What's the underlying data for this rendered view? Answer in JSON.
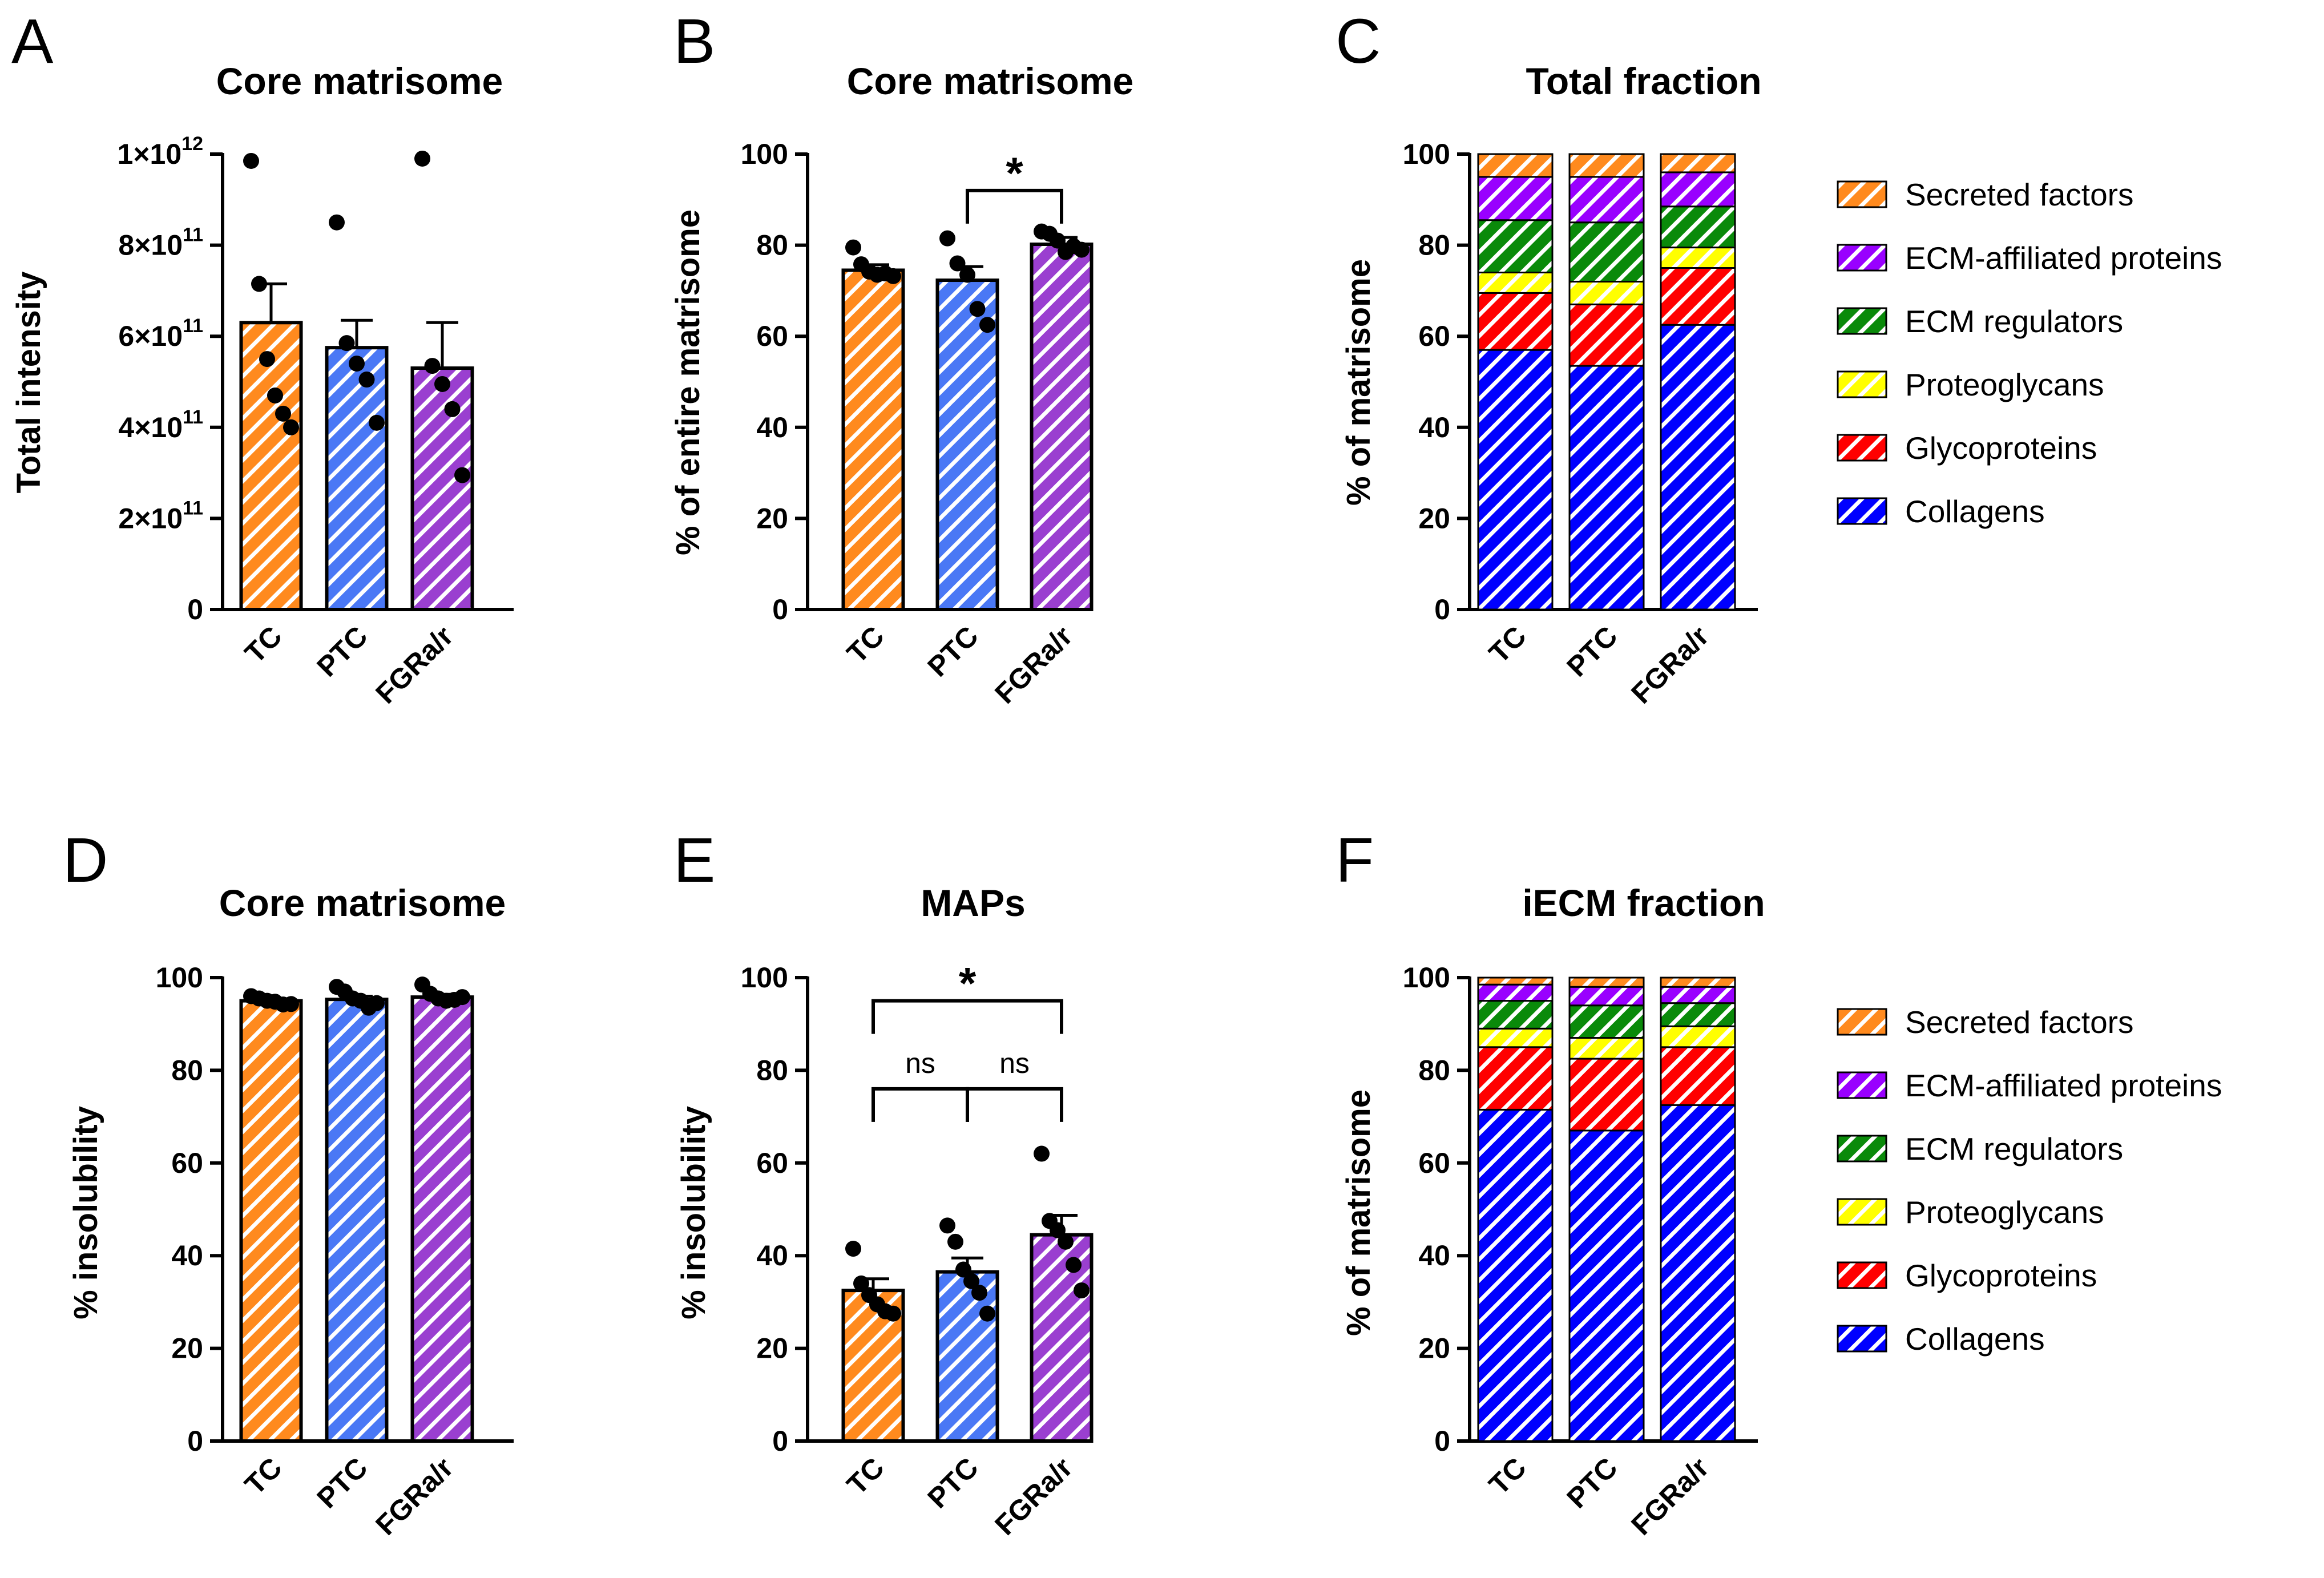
{
  "colors": {
    "TC": "#FF8A1E",
    "PTC": "#4A78F5",
    "FGRa/r": "#9A3FD0",
    "Secreted factors": "#FF8A1E",
    "ECM-affiliated proteins": "#9900FF",
    "ECM regulators": "#0A8A0A",
    "Proteoglycans": "#FFFF00",
    "Glycoproteins": "#FF0000",
    "Collagens": "#0000FF"
  },
  "legend": {
    "items": [
      "Secreted factors",
      "ECM-affiliated proteins",
      "ECM regulators",
      "Proteoglycans",
      "Glycoproteins",
      "Collagens"
    ]
  },
  "chart_data": [
    {
      "panel": "A",
      "type": "bar",
      "title": "Core matrisome",
      "xlabel": "",
      "ylabel": "Total intensity",
      "categories": [
        "TC",
        "PTC",
        "FGRa/r"
      ],
      "values": [
        630000000000.0,
        575000000000.0,
        530000000000.0
      ],
      "errors": [
        85000000000.0,
        60000000000.0,
        100000000000.0
      ],
      "points": [
        [
          985000000000.0,
          715000000000.0,
          550000000000.0,
          470000000000.0,
          430000000000.0,
          400000000000.0
        ],
        [
          850000000000.0,
          585000000000.0,
          540000000000.0,
          505000000000.0,
          410000000000.0
        ],
        [
          990000000000.0,
          535000000000.0,
          495000000000.0,
          440000000000.0,
          295000000000.0
        ]
      ],
      "ylim": [
        0,
        1000000000000.0
      ],
      "yticks": [
        0,
        200000000000.0,
        400000000000.0,
        600000000000.0,
        800000000000.0,
        1000000000000.0
      ],
      "ytick_labels": [
        {
          "base": "0",
          "exp": ""
        },
        {
          "base": "2×10",
          "exp": "11"
        },
        {
          "base": "4×10",
          "exp": "11"
        },
        {
          "base": "6×10",
          "exp": "11"
        },
        {
          "base": "8×10",
          "exp": "11"
        },
        {
          "base": "1×10",
          "exp": "12"
        }
      ],
      "significance": []
    },
    {
      "panel": "B",
      "type": "bar",
      "title": "Core matrisome",
      "xlabel": "",
      "ylabel": "% of entire matrisome",
      "categories": [
        "TC",
        "PTC",
        "FGRa/r"
      ],
      "values": [
        74.5,
        72.3,
        80.2
      ],
      "errors": [
        1.2,
        3.0,
        1.5
      ],
      "points": [
        [
          79.5,
          75.8,
          74.2,
          73.5,
          73.8,
          73.2
        ],
        [
          81.5,
          76.0,
          73.5,
          66.0,
          62.5
        ],
        [
          83.0,
          82.5,
          81.0,
          78.5,
          79.8,
          79.0
        ]
      ],
      "ylim": [
        0,
        100
      ],
      "yticks": [
        0,
        20,
        40,
        60,
        80,
        100
      ],
      "ytick_labels": [
        {
          "base": "0",
          "exp": ""
        },
        {
          "base": "20",
          "exp": ""
        },
        {
          "base": "40",
          "exp": ""
        },
        {
          "base": "60",
          "exp": ""
        },
        {
          "base": "80",
          "exp": ""
        },
        {
          "base": "100",
          "exp": ""
        }
      ],
      "significance": [
        {
          "from": 1,
          "to": 2,
          "y": 92,
          "label": "*"
        }
      ]
    },
    {
      "panel": "C",
      "type": "bar",
      "stacked": true,
      "title": "Total fraction",
      "xlabel": "",
      "ylabel": "% of matrisome",
      "categories": [
        "TC",
        "PTC",
        "FGRa/r"
      ],
      "series": [
        {
          "name": "Collagens",
          "values": [
            57,
            53.5,
            62.5
          ]
        },
        {
          "name": "Glycoproteins",
          "values": [
            12.5,
            13.5,
            12.5
          ]
        },
        {
          "name": "Proteoglycans",
          "values": [
            4.5,
            5.0,
            4.5
          ]
        },
        {
          "name": "ECM regulators",
          "values": [
            11.5,
            13.0,
            9.0
          ]
        },
        {
          "name": "ECM-affiliated proteins",
          "values": [
            9.5,
            10.0,
            7.5
          ]
        },
        {
          "name": "Secreted factors",
          "values": [
            5.0,
            5.0,
            4.0
          ]
        }
      ],
      "ylim": [
        0,
        100
      ],
      "yticks": [
        0,
        20,
        40,
        60,
        80,
        100
      ],
      "ytick_labels": [
        {
          "base": "0",
          "exp": ""
        },
        {
          "base": "20",
          "exp": ""
        },
        {
          "base": "40",
          "exp": ""
        },
        {
          "base": "60",
          "exp": ""
        },
        {
          "base": "80",
          "exp": ""
        },
        {
          "base": "100",
          "exp": ""
        }
      ],
      "legend": "right"
    },
    {
      "panel": "D",
      "type": "bar",
      "title": "Core matrisome",
      "xlabel": "",
      "ylabel": "% insolubility",
      "categories": [
        "TC",
        "PTC",
        "FGRa/r"
      ],
      "values": [
        95.0,
        95.3,
        95.8
      ],
      "errors": [
        0.4,
        0.7,
        0.6
      ],
      "points": [
        [
          96.0,
          95.5,
          95.0,
          94.8,
          94.2,
          94.3
        ],
        [
          98.0,
          97.0,
          95.5,
          95.0,
          93.5,
          94.5
        ],
        [
          98.5,
          96.5,
          95.5,
          95.0,
          95.2,
          95.8
        ]
      ],
      "ylim": [
        0,
        100
      ],
      "yticks": [
        0,
        20,
        40,
        60,
        80,
        100
      ],
      "ytick_labels": [
        {
          "base": "0",
          "exp": ""
        },
        {
          "base": "20",
          "exp": ""
        },
        {
          "base": "40",
          "exp": ""
        },
        {
          "base": "60",
          "exp": ""
        },
        {
          "base": "80",
          "exp": ""
        },
        {
          "base": "100",
          "exp": ""
        }
      ],
      "significance": []
    },
    {
      "panel": "E",
      "type": "bar",
      "title": "MAPs",
      "xlabel": "",
      "ylabel": "% insolubility",
      "categories": [
        "TC",
        "PTC",
        "FGRa/r"
      ],
      "values": [
        32.5,
        36.5,
        44.5
      ],
      "errors": [
        2.5,
        3.0,
        4.2
      ],
      "points": [
        [
          41.5,
          34.0,
          31.5,
          29.5,
          28.0,
          27.5
        ],
        [
          46.5,
          43.0,
          37.0,
          34.5,
          32.0,
          27.5
        ],
        [
          62.0,
          47.5,
          45.5,
          43.0,
          38.0,
          32.5
        ]
      ],
      "ylim": [
        0,
        100
      ],
      "yticks": [
        0,
        20,
        40,
        60,
        80,
        100
      ],
      "ytick_labels": [
        {
          "base": "0",
          "exp": ""
        },
        {
          "base": "20",
          "exp": ""
        },
        {
          "base": "40",
          "exp": ""
        },
        {
          "base": "60",
          "exp": ""
        },
        {
          "base": "80",
          "exp": ""
        },
        {
          "base": "100",
          "exp": ""
        }
      ],
      "significance": [
        {
          "from": 0,
          "to": 2,
          "y": 95,
          "label": "*"
        },
        {
          "from": 0,
          "to": 1,
          "y": 76,
          "label": "ns"
        },
        {
          "from": 1,
          "to": 2,
          "y": 76,
          "label": "ns"
        }
      ]
    },
    {
      "panel": "F",
      "type": "bar",
      "stacked": true,
      "title": "iECM fraction",
      "xlabel": "",
      "ylabel": "% of matrisome",
      "categories": [
        "TC",
        "PTC",
        "FGRa/r"
      ],
      "series": [
        {
          "name": "Collagens",
          "values": [
            71.5,
            67.0,
            72.5
          ]
        },
        {
          "name": "Glycoproteins",
          "values": [
            13.5,
            15.5,
            12.5
          ]
        },
        {
          "name": "Proteoglycans",
          "values": [
            4.0,
            4.5,
            4.5
          ]
        },
        {
          "name": "ECM regulators",
          "values": [
            6.0,
            7.0,
            5.0
          ]
        },
        {
          "name": "ECM-affiliated proteins",
          "values": [
            3.5,
            4.0,
            3.5
          ]
        },
        {
          "name": "Secreted factors",
          "values": [
            1.5,
            2.0,
            2.0
          ]
        }
      ],
      "ylim": [
        0,
        100
      ],
      "yticks": [
        0,
        20,
        40,
        60,
        80,
        100
      ],
      "ytick_labels": [
        {
          "base": "0",
          "exp": ""
        },
        {
          "base": "20",
          "exp": ""
        },
        {
          "base": "40",
          "exp": ""
        },
        {
          "base": "60",
          "exp": ""
        },
        {
          "base": "80",
          "exp": ""
        },
        {
          "base": "100",
          "exp": ""
        }
      ],
      "legend": "right"
    }
  ]
}
